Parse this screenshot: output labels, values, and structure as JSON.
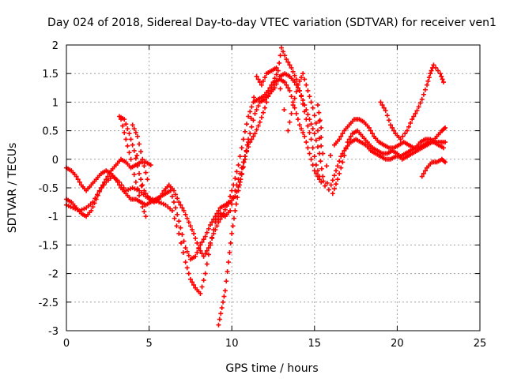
{
  "chart_data": {
    "type": "scatter",
    "title": "Day 024 of 2018, Sidereal Day-to-day VTEC variation (SDTVAR) for receiver ven1",
    "xlabel": "GPS time / hours",
    "ylabel": "SDTVAR / TECUs",
    "xlim": [
      0,
      25
    ],
    "ylim": [
      -3,
      2
    ],
    "xticks": [
      0,
      5,
      10,
      15,
      20,
      25
    ],
    "xtick_labels": [
      "0",
      "5",
      "10",
      "15",
      "20",
      "25"
    ],
    "yticks": [
      -3,
      -2.5,
      -2,
      -1.5,
      -1,
      -0.5,
      0,
      0.5,
      1,
      1.5,
      2
    ],
    "ytick_labels": [
      "-3",
      "-2.5",
      "-2",
      "-1.5",
      "-1",
      "-0.5",
      "0",
      "0.5",
      "1",
      "1.5",
      "2"
    ],
    "grid": true,
    "marker": "+",
    "marker_color": "#ff0000",
    "series": [
      {
        "points": [
          [
            0.0,
            -0.15
          ],
          [
            0.3,
            -0.2
          ],
          [
            0.6,
            -0.3
          ],
          [
            0.9,
            -0.45
          ],
          [
            1.2,
            -0.55
          ],
          [
            1.5,
            -0.45
          ],
          [
            1.8,
            -0.35
          ],
          [
            2.1,
            -0.25
          ],
          [
            2.4,
            -0.2
          ],
          [
            2.7,
            -0.25
          ],
          [
            3.0,
            -0.35
          ],
          [
            3.3,
            -0.5
          ],
          [
            3.6,
            -0.6
          ],
          [
            3.9,
            -0.7
          ],
          [
            4.2,
            -0.7
          ],
          [
            4.5,
            -0.75
          ],
          [
            4.8,
            -0.8
          ],
          [
            5.1,
            -0.75
          ],
          [
            5.4,
            -0.7
          ],
          [
            5.7,
            -0.65
          ],
          [
            6.0,
            -0.6
          ],
          [
            6.3,
            -0.55
          ],
          [
            6.6,
            -0.85
          ],
          [
            6.9,
            -1.2
          ],
          [
            7.2,
            -1.55
          ],
          [
            7.5,
            -1.75
          ],
          [
            7.8,
            -1.7
          ],
          [
            8.1,
            -1.5
          ],
          [
            8.4,
            -1.35
          ],
          [
            8.7,
            -1.15
          ],
          [
            9.0,
            -1.0
          ],
          [
            9.3,
            -0.85
          ],
          [
            9.6,
            -0.8
          ],
          [
            9.9,
            -0.75
          ],
          [
            10.2,
            -0.65
          ],
          [
            10.5,
            -0.4
          ],
          [
            10.8,
            0.0
          ],
          [
            11.1,
            0.45
          ],
          [
            11.4,
            0.8
          ],
          [
            11.7,
            1.0
          ],
          [
            12.0,
            1.05
          ],
          [
            12.3,
            1.15
          ],
          [
            12.6,
            1.25
          ],
          [
            12.9,
            1.45
          ],
          [
            13.2,
            1.5
          ],
          [
            13.5,
            1.45
          ],
          [
            13.8,
            1.35
          ],
          [
            14.1,
            1.2
          ],
          [
            14.4,
            0.95
          ],
          [
            14.7,
            0.7
          ],
          [
            15.0,
            0.45
          ],
          [
            15.3,
            0.1
          ],
          [
            15.5,
            -0.3
          ],
          [
            16.2,
            0.25
          ],
          [
            16.5,
            0.35
          ],
          [
            16.8,
            0.5
          ],
          [
            17.1,
            0.6
          ],
          [
            17.4,
            0.7
          ],
          [
            17.7,
            0.7
          ],
          [
            18.0,
            0.65
          ],
          [
            18.3,
            0.55
          ],
          [
            18.6,
            0.4
          ],
          [
            18.9,
            0.3
          ],
          [
            19.2,
            0.25
          ],
          [
            19.5,
            0.2
          ],
          [
            19.8,
            0.2
          ],
          [
            20.1,
            0.25
          ],
          [
            20.4,
            0.3
          ],
          [
            20.7,
            0.25
          ],
          [
            21.0,
            0.2
          ],
          [
            21.3,
            0.2
          ],
          [
            21.6,
            0.25
          ],
          [
            21.9,
            0.3
          ],
          [
            22.2,
            0.3
          ],
          [
            22.5,
            0.25
          ],
          [
            22.8,
            0.2
          ]
        ]
      },
      {
        "points": [
          [
            0.0,
            -0.7
          ],
          [
            0.3,
            -0.75
          ],
          [
            0.6,
            -0.85
          ],
          [
            0.9,
            -0.95
          ],
          [
            1.2,
            -1.0
          ],
          [
            1.5,
            -0.9
          ],
          [
            1.8,
            -0.7
          ],
          [
            2.1,
            -0.5
          ],
          [
            2.4,
            -0.35
          ],
          [
            2.7,
            -0.2
          ],
          [
            3.0,
            -0.1
          ],
          [
            3.3,
            0.0
          ],
          [
            3.6,
            -0.05
          ],
          [
            3.9,
            -0.15
          ],
          [
            4.2,
            -0.1
          ],
          [
            4.5,
            -0.05
          ],
          [
            4.8,
            -0.05
          ],
          [
            5.1,
            -0.1
          ],
          [
            3.2,
            0.75
          ],
          [
            3.5,
            0.7
          ],
          [
            3.8,
            0.45
          ],
          [
            4.1,
            0.15
          ],
          [
            4.4,
            -0.25
          ],
          [
            4.7,
            -0.55
          ],
          [
            5.0,
            -0.7
          ],
          [
            5.3,
            -0.75
          ],
          [
            5.6,
            -0.7
          ],
          [
            5.9,
            -0.55
          ],
          [
            6.2,
            -0.45
          ],
          [
            6.5,
            -0.55
          ],
          [
            6.8,
            -0.75
          ],
          [
            7.1,
            -0.9
          ],
          [
            7.4,
            -1.1
          ],
          [
            7.7,
            -1.3
          ],
          [
            8.0,
            -1.55
          ],
          [
            8.3,
            -1.7
          ],
          [
            8.6,
            -1.55
          ],
          [
            8.9,
            -1.3
          ],
          [
            9.2,
            -1.1
          ],
          [
            9.5,
            -0.95
          ],
          [
            9.8,
            -0.75
          ],
          [
            10.1,
            -0.45
          ],
          [
            10.4,
            -0.1
          ],
          [
            10.7,
            0.35
          ],
          [
            11.0,
            0.75
          ],
          [
            11.3,
            1.0
          ],
          [
            11.6,
            1.05
          ],
          [
            11.9,
            1.1
          ],
          [
            12.2,
            1.2
          ],
          [
            12.5,
            1.35
          ],
          [
            12.8,
            1.55
          ],
          [
            13.0,
            1.95
          ],
          [
            13.3,
            1.75
          ],
          [
            13.6,
            1.6
          ],
          [
            13.9,
            1.4
          ],
          [
            14.2,
            1.1
          ],
          [
            14.5,
            0.7
          ],
          [
            14.8,
            0.35
          ],
          [
            15.1,
            -0.1
          ],
          [
            15.4,
            -0.4
          ],
          [
            16.1,
            -0.6
          ],
          [
            16.4,
            -0.35
          ],
          [
            16.7,
            -0.05
          ],
          [
            17.0,
            0.3
          ],
          [
            17.3,
            0.45
          ],
          [
            17.6,
            0.5
          ],
          [
            17.9,
            0.4
          ],
          [
            18.2,
            0.3
          ],
          [
            18.5,
            0.2
          ],
          [
            18.8,
            0.15
          ],
          [
            19.1,
            0.1
          ],
          [
            19.4,
            0.1
          ],
          [
            19.7,
            0.15
          ],
          [
            20.0,
            0.1
          ],
          [
            20.3,
            0.0
          ],
          [
            20.6,
            0.05
          ],
          [
            20.9,
            0.1
          ],
          [
            21.2,
            0.15
          ],
          [
            21.5,
            0.2
          ],
          [
            21.8,
            0.25
          ],
          [
            22.1,
            0.3
          ],
          [
            22.4,
            0.4
          ],
          [
            22.7,
            0.5
          ],
          [
            22.9,
            0.55
          ]
        ]
      },
      {
        "points": [
          [
            0.0,
            -0.8
          ],
          [
            0.4,
            -0.85
          ],
          [
            0.8,
            -0.9
          ],
          [
            1.2,
            -0.85
          ],
          [
            1.6,
            -0.75
          ],
          [
            2.0,
            -0.55
          ],
          [
            2.4,
            -0.4
          ],
          [
            2.8,
            -0.3
          ],
          [
            3.2,
            -0.4
          ],
          [
            3.6,
            -0.55
          ],
          [
            4.0,
            -0.5
          ],
          [
            4.4,
            -0.55
          ],
          [
            4.8,
            -0.65
          ],
          [
            5.2,
            -0.7
          ],
          [
            5.6,
            -0.75
          ],
          [
            6.0,
            -0.8
          ],
          [
            6.4,
            -0.9
          ],
          [
            6.8,
            -1.3
          ],
          [
            7.2,
            -1.8
          ],
          [
            7.5,
            -2.1
          ],
          [
            7.8,
            -2.25
          ],
          [
            8.1,
            -2.35
          ],
          [
            8.4,
            -2.0
          ],
          [
            8.7,
            -1.5
          ],
          [
            9.0,
            -1.1
          ],
          [
            9.3,
            -0.95
          ],
          [
            9.6,
            -1.0
          ],
          [
            9.9,
            -0.9
          ],
          [
            10.2,
            -0.55
          ],
          [
            10.5,
            -0.25
          ],
          [
            10.8,
            0.05
          ],
          [
            11.1,
            0.3
          ],
          [
            11.4,
            0.45
          ],
          [
            11.7,
            0.65
          ],
          [
            12.0,
            0.9
          ],
          [
            12.3,
            1.2
          ],
          [
            12.6,
            1.35
          ],
          [
            12.9,
            1.4
          ],
          [
            13.2,
            1.35
          ],
          [
            13.5,
            1.2
          ],
          [
            13.8,
            0.9
          ],
          [
            14.1,
            0.6
          ],
          [
            14.4,
            0.4
          ],
          [
            14.7,
            0.1
          ],
          [
            15.0,
            -0.2
          ],
          [
            15.3,
            -0.35
          ],
          [
            16.0,
            -0.45
          ],
          [
            16.3,
            -0.2
          ],
          [
            16.6,
            0.05
          ],
          [
            16.9,
            0.2
          ],
          [
            17.2,
            0.3
          ],
          [
            17.5,
            0.35
          ],
          [
            17.8,
            0.3
          ],
          [
            18.1,
            0.25
          ],
          [
            18.4,
            0.15
          ],
          [
            18.7,
            0.1
          ],
          [
            19.0,
            0.05
          ],
          [
            19.3,
            0.0
          ],
          [
            19.6,
            0.0
          ],
          [
            19.9,
            0.05
          ],
          [
            20.2,
            0.05
          ],
          [
            20.5,
            0.1
          ],
          [
            20.8,
            0.15
          ],
          [
            21.1,
            0.2
          ],
          [
            21.4,
            0.3
          ],
          [
            21.7,
            0.35
          ],
          [
            22.0,
            0.35
          ],
          [
            22.3,
            0.3
          ],
          [
            22.6,
            0.3
          ],
          [
            22.9,
            0.3
          ]
        ]
      },
      {
        "points": [
          [
            3.3,
            0.7
          ],
          [
            3.6,
            0.35
          ],
          [
            3.9,
            0.0
          ],
          [
            4.2,
            -0.4
          ],
          [
            4.5,
            -0.75
          ],
          [
            4.8,
            -1.0
          ],
          [
            4.0,
            0.6
          ],
          [
            4.3,
            0.4
          ],
          [
            4.6,
            0.0
          ],
          [
            4.9,
            -0.35
          ],
          [
            9.2,
            -2.9
          ],
          [
            9.4,
            -2.6
          ],
          [
            9.6,
            -2.3
          ],
          [
            9.8,
            -1.8
          ],
          [
            10.0,
            -1.3
          ],
          [
            10.2,
            -0.9
          ],
          [
            10.4,
            -0.55
          ],
          [
            10.6,
            -0.25
          ],
          [
            10.8,
            0.05
          ],
          [
            11.0,
            0.35
          ],
          [
            11.5,
            1.45
          ],
          [
            11.8,
            1.3
          ],
          [
            12.1,
            1.5
          ],
          [
            12.4,
            1.55
          ],
          [
            12.7,
            1.6
          ],
          [
            13.4,
            0.5
          ],
          [
            13.7,
            0.95
          ],
          [
            14.0,
            1.3
          ],
          [
            14.3,
            1.5
          ],
          [
            14.6,
            1.2
          ],
          [
            14.9,
            0.9
          ],
          [
            15.2,
            0.5
          ],
          [
            15.5,
            0.1
          ],
          [
            15.2,
            0.95
          ],
          [
            15.4,
            0.55
          ],
          [
            19.0,
            1.0
          ],
          [
            19.3,
            0.85
          ],
          [
            19.6,
            0.6
          ],
          [
            19.9,
            0.45
          ],
          [
            20.2,
            0.35
          ],
          [
            20.6,
            0.5
          ],
          [
            20.9,
            0.7
          ],
          [
            21.2,
            0.85
          ],
          [
            21.5,
            1.05
          ],
          [
            21.8,
            1.3
          ],
          [
            22.0,
            1.5
          ],
          [
            22.2,
            1.65
          ],
          [
            22.6,
            1.5
          ],
          [
            22.8,
            1.35
          ],
          [
            21.5,
            -0.3
          ],
          [
            21.8,
            -0.15
          ],
          [
            22.1,
            -0.05
          ],
          [
            22.4,
            -0.05
          ],
          [
            22.7,
            0.0
          ],
          [
            22.9,
            -0.05
          ]
        ]
      }
    ]
  }
}
